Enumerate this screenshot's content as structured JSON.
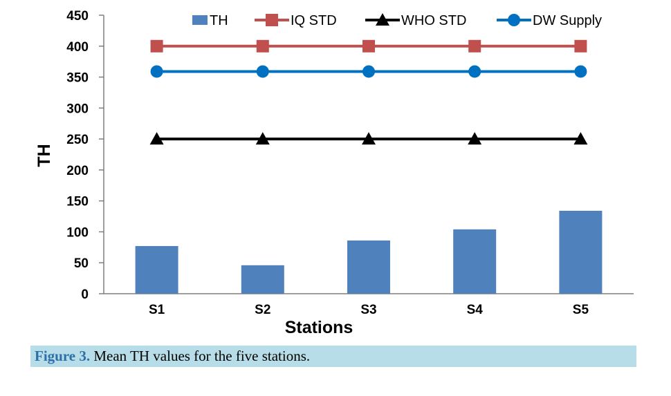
{
  "chart_data": {
    "type": "bar",
    "categories": [
      "S1",
      "S2",
      "S3",
      "S4",
      "S5"
    ],
    "series": [
      {
        "name": "TH",
        "type": "bar",
        "values": [
          77,
          46,
          86,
          104,
          134
        ],
        "color": "#4f81bd"
      },
      {
        "name": "IQ STD",
        "type": "line",
        "values": [
          400,
          400,
          400,
          400,
          400
        ],
        "color": "#c0504d",
        "marker": "square"
      },
      {
        "name": "WHO STD",
        "type": "line",
        "values": [
          250,
          250,
          250,
          250,
          250
        ],
        "color": "#000000",
        "marker": "triangle"
      },
      {
        "name": "DW Supply",
        "type": "line",
        "values": [
          359,
          359,
          359,
          359,
          359
        ],
        "color": "#0070c0",
        "marker": "circle"
      }
    ],
    "yticks": [
      "0",
      "50",
      "100",
      "150",
      "200",
      "250",
      "300",
      "350",
      "400",
      "450"
    ],
    "ylim": [
      0,
      450
    ],
    "xlabel": "Stations",
    "ylabel": "TH",
    "grid": false,
    "legend_position": "top"
  },
  "caption": {
    "label": "Figure 3.",
    "text": " Mean TH values for the five stations."
  }
}
